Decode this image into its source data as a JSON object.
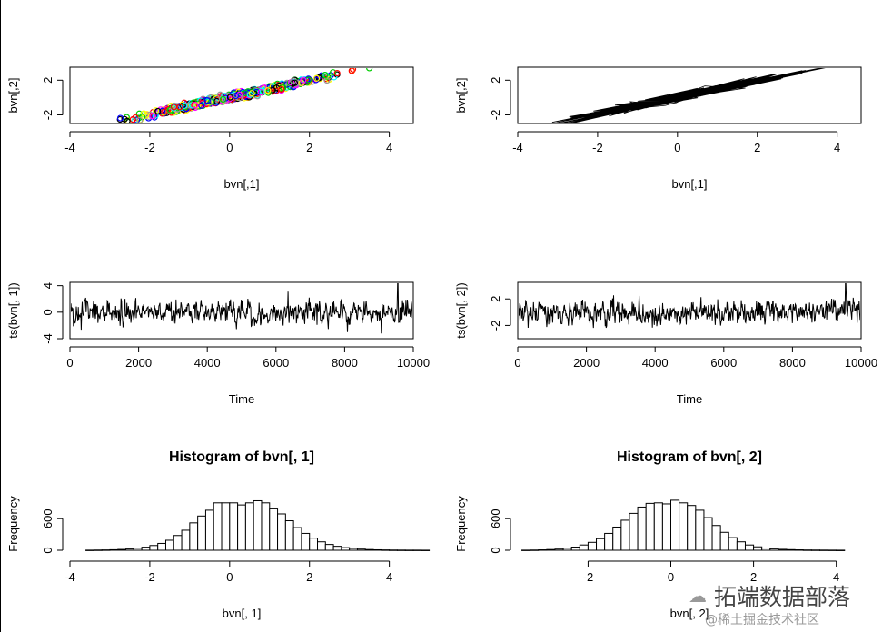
{
  "chart_data": [
    {
      "type": "scatter",
      "xlabel": "bvn[,1]",
      "ylabel": "bvn[,2]",
      "xlim": [
        -4,
        4.6
      ],
      "ylim": [
        -3,
        3.5
      ],
      "xticks": [
        -4,
        -2,
        0,
        2,
        4
      ],
      "yticks": [
        -2,
        2
      ],
      "n": 10000,
      "relation": "y ≈ 0.98·x (highly correlated)",
      "marker": "multi-colored open circles",
      "colors": [
        "#000000",
        "#ff0000",
        "#00cd00",
        "#0000ff",
        "#00ffff",
        "#ff00ff",
        "#ffff00",
        "#999999"
      ]
    },
    {
      "type": "line",
      "xlabel": "bvn[,1]",
      "ylabel": "bvn[,2]",
      "xlim": [
        -4,
        4.6
      ],
      "ylim": [
        -3,
        3.5
      ],
      "xticks": [
        -4,
        -2,
        0,
        2,
        4
      ],
      "yticks": [
        -2,
        2
      ],
      "n": 10000
    },
    {
      "type": "line",
      "xlabel": "Time",
      "ylabel": "ts(bvn[, 1])",
      "xlim": [
        0,
        10000
      ],
      "ylim": [
        -4,
        4.5
      ],
      "xticks": [
        0,
        2000,
        4000,
        6000,
        8000,
        10000
      ],
      "yticks": [
        -4,
        0,
        4
      ]
    },
    {
      "type": "line",
      "xlabel": "Time",
      "ylabel": "ts(bvn[, 2])",
      "xlim": [
        0,
        10000
      ],
      "ylim": [
        -4,
        4.5
      ],
      "xticks": [
        0,
        2000,
        4000,
        6000,
        8000,
        10000
      ],
      "yticks": [
        -2,
        2
      ]
    },
    {
      "type": "bar",
      "title": "Histogram of bvn[, 1]",
      "xlabel": "bvn[, 1]",
      "ylabel": "Frequency",
      "xlim": [
        -4,
        4.6
      ],
      "ylim": [
        0,
        1000
      ],
      "xticks": [
        -4,
        -2,
        0,
        2,
        4
      ],
      "yticks": [
        0,
        600
      ],
      "bin_width": 0.2,
      "bin_start": -3.6,
      "values": [
        2,
        4,
        6,
        10,
        16,
        24,
        38,
        58,
        90,
        130,
        190,
        280,
        380,
        520,
        650,
        760,
        900,
        900,
        900,
        860,
        900,
        940,
        900,
        800,
        690,
        560,
        430,
        320,
        230,
        160,
        110,
        75,
        50,
        34,
        22,
        14,
        9,
        6,
        4,
        3,
        2,
        2,
        1
      ]
    },
    {
      "type": "bar",
      "title": "Histogram of bvn[, 2]",
      "xlabel": "bvn[, 2]",
      "ylabel": "Frequency",
      "xlim": [
        -3.7,
        4.6
      ],
      "ylim": [
        0,
        1000
      ],
      "xticks": [
        -2,
        0,
        2,
        4
      ],
      "yticks": [
        0,
        600
      ],
      "bin_width": 0.2,
      "bin_start": -3.6,
      "values": [
        2,
        4,
        8,
        14,
        22,
        38,
        60,
        100,
        150,
        220,
        320,
        440,
        570,
        700,
        820,
        890,
        900,
        880,
        950,
        900,
        850,
        760,
        620,
        470,
        340,
        240,
        160,
        100,
        65,
        42,
        28,
        18,
        12,
        8,
        5,
        4,
        3,
        2,
        1
      ]
    }
  ],
  "watermark": {
    "text": "拓端数据部落",
    "sub": "@稀土掘金技术社区"
  }
}
